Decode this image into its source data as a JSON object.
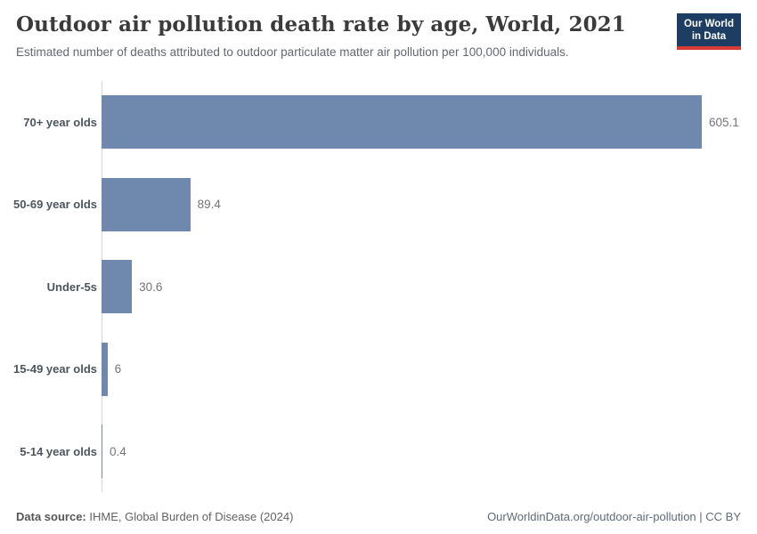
{
  "header": {
    "title": "Outdoor air pollution death rate by age, World, 2021",
    "subtitle": "Estimated number of deaths attributed to outdoor particulate matter air pollution per 100,000 individuals.",
    "logo": {
      "line1": "Our World",
      "line2": "in Data"
    }
  },
  "chart_data": {
    "type": "bar",
    "orientation": "horizontal",
    "title": "Outdoor air pollution death rate by age, World, 2021",
    "xlabel": "",
    "ylabel": "",
    "categories": [
      "70+ year olds",
      "50-69 year olds",
      "Under-5s",
      "15-49 year olds",
      "5-14 year olds"
    ],
    "values": [
      605.1,
      89.4,
      30.6,
      6,
      0.4
    ],
    "value_labels": [
      "605.1",
      "89.4",
      "30.6",
      "6",
      "0.4"
    ],
    "xlim": [
      0,
      605.1
    ],
    "grid": false,
    "legend": false,
    "bar_color": "#6f88ae",
    "axis_color": "#d4d7da"
  },
  "footer": {
    "source_label": "Data source:",
    "source_text": " IHME, Global Burden of Disease (2024)",
    "credit": "OurWorldinData.org/outdoor-air-pollution | CC BY"
  },
  "colors": {
    "bar": "#6f88ae",
    "logo_bg": "#1d3d63",
    "logo_accent": "#d93a34",
    "title_text": "#3b3b3b",
    "subtitle_text": "#62686f",
    "category_text": "#4c545c",
    "value_text": "#757575"
  }
}
